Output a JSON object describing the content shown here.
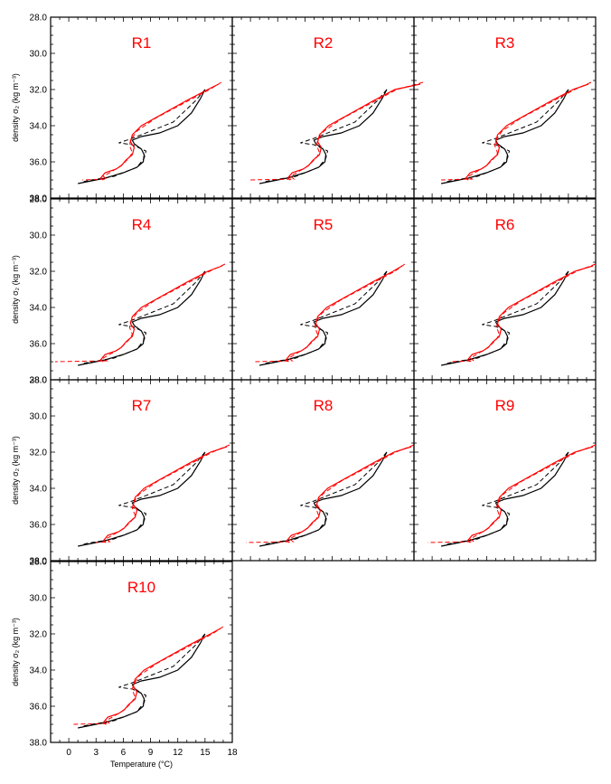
{
  "chart_data": {
    "type": "line",
    "layout": "4x3 panel grid, 10 panels",
    "ylabel": "density σ₂ (kg m⁻³)",
    "xlabel": "Temperature (°C)",
    "ylim": [
      38.0,
      28.0
    ],
    "xlim": [
      -2,
      18
    ],
    "y_ticks": [
      "28.0",
      "30.0",
      "32.0",
      "34.0",
      "36.0",
      "38.0"
    ],
    "x_ticks": [
      "0",
      "3",
      "6",
      "9",
      "12",
      "15",
      "18"
    ],
    "colors": {
      "reference": "#000000",
      "run": "#ff0000"
    },
    "line_styles": {
      "solid": "model profile",
      "dashed": "profile (dashed)"
    },
    "panels": [
      {
        "title": "R1",
        "red_x_shift": 0.0,
        "red_top_t": 16.8,
        "red_bottom_t": 1.5
      },
      {
        "title": "R2",
        "red_x_shift": 0.6,
        "red_top_t": 19.0,
        "red_bottom_t": -0.2
      },
      {
        "title": "R3",
        "red_x_shift": 0.2,
        "red_top_t": 17.5,
        "red_bottom_t": 1.0
      },
      {
        "title": "R4",
        "red_x_shift": 0.0,
        "red_top_t": 17.2,
        "red_bottom_t": -1.5
      },
      {
        "title": "R5",
        "red_x_shift": 0.4,
        "red_top_t": 17.0,
        "red_bottom_t": 0.5
      },
      {
        "title": "R6",
        "red_x_shift": 0.4,
        "red_top_t": 18.0,
        "red_bottom_t": 2.0
      },
      {
        "title": "R7",
        "red_x_shift": 0.3,
        "red_top_t": 17.7,
        "red_bottom_t": 3.0
      },
      {
        "title": "R8",
        "red_x_shift": 0.5,
        "red_top_t": 18.0,
        "red_bottom_t": -0.5
      },
      {
        "title": "R9",
        "red_x_shift": 0.4,
        "red_top_t": 18.0,
        "red_bottom_t": -0.5
      },
      {
        "title": "R10",
        "red_x_shift": 0.3,
        "red_top_t": 17.0,
        "red_bottom_t": 0.5
      }
    ],
    "black_solid": [
      [
        15.0,
        32.0
      ],
      [
        14.5,
        32.5
      ],
      [
        13.5,
        33.3
      ],
      [
        12.0,
        34.0
      ],
      [
        10.0,
        34.4
      ],
      [
        8.0,
        34.6
      ],
      [
        7.0,
        34.8
      ],
      [
        7.2,
        35.0
      ],
      [
        8.0,
        35.3
      ],
      [
        8.3,
        35.6
      ],
      [
        8.2,
        36.0
      ],
      [
        7.5,
        36.3
      ],
      [
        6.0,
        36.6
      ],
      [
        4.0,
        36.9
      ],
      [
        2.0,
        37.1
      ],
      [
        1.0,
        37.2
      ]
    ],
    "black_dashed": [
      [
        15.0,
        32.0
      ],
      [
        14.0,
        32.6
      ],
      [
        11.5,
        33.8
      ],
      [
        9.0,
        34.3
      ],
      [
        7.0,
        34.7
      ],
      [
        5.5,
        34.95
      ],
      [
        7.0,
        35.05
      ],
      [
        8.5,
        35.4
      ],
      [
        8.3,
        35.8
      ],
      [
        7.5,
        36.3
      ],
      [
        5.0,
        36.8
      ],
      [
        2.5,
        37.0
      ],
      [
        1.5,
        37.1
      ]
    ],
    "red_solid": [
      [
        15.3,
        32.0
      ],
      [
        13.0,
        32.6
      ],
      [
        10.5,
        33.3
      ],
      [
        8.0,
        34.0
      ],
      [
        7.0,
        34.5
      ],
      [
        6.8,
        34.9
      ],
      [
        7.2,
        35.2
      ],
      [
        7.0,
        35.6
      ],
      [
        6.3,
        35.9
      ],
      [
        5.8,
        36.2
      ],
      [
        5.2,
        36.4
      ],
      [
        4.0,
        36.6
      ],
      [
        3.5,
        36.9
      ],
      [
        3.8,
        37.0
      ]
    ],
    "red_dashed": [
      [
        15.5,
        32.0
      ],
      [
        12.5,
        32.8
      ],
      [
        9.5,
        33.6
      ],
      [
        7.5,
        34.3
      ],
      [
        6.8,
        34.8
      ],
      [
        6.7,
        35.1
      ],
      [
        7.0,
        35.5
      ],
      [
        6.6,
        35.8
      ],
      [
        6.0,
        36.1
      ],
      [
        5.5,
        36.3
      ],
      [
        4.5,
        36.6
      ],
      [
        3.8,
        36.8
      ],
      [
        4.2,
        36.95
      ]
    ]
  }
}
